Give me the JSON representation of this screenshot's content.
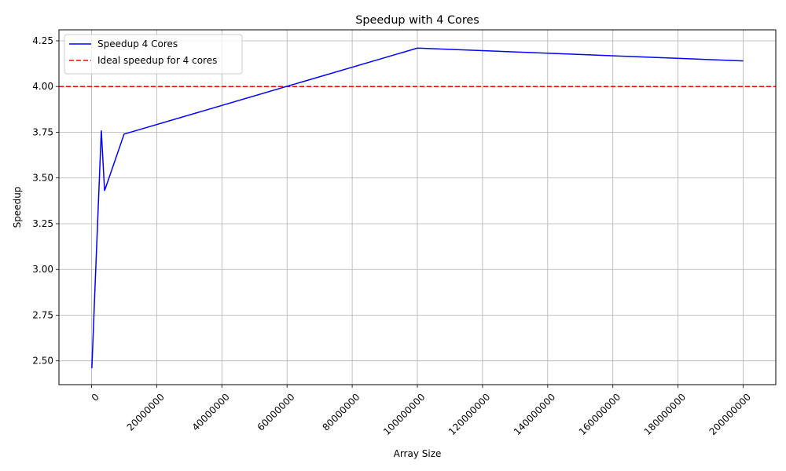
{
  "chart_data": {
    "type": "line",
    "title": "Speedup with 4 Cores",
    "xlabel": "Array Size",
    "ylabel": "Speedup",
    "xlim": [
      -10000000,
      210000000
    ],
    "ylim": [
      2.37,
      4.31
    ],
    "xticks": [
      0,
      20000000,
      40000000,
      60000000,
      80000000,
      100000000,
      120000000,
      140000000,
      160000000,
      180000000,
      200000000
    ],
    "xtick_labels": [
      "0",
      "20000000",
      "40000000",
      "60000000",
      "80000000",
      "100000000",
      "120000000",
      "140000000",
      "160000000",
      "180000000",
      "200000000"
    ],
    "yticks": [
      2.5,
      2.75,
      3.0,
      3.25,
      3.5,
      3.75,
      4.0,
      4.25
    ],
    "ytick_labels": [
      "2.50",
      "2.75",
      "3.00",
      "3.25",
      "3.50",
      "3.75",
      "4.00",
      "4.25"
    ],
    "grid": true,
    "legend_position": "top-left",
    "series": [
      {
        "name": "Speedup 4 Cores",
        "color": "#0000ff",
        "style": "solid",
        "x": [
          100000,
          1000000,
          3000000,
          4000000,
          10000000,
          100000000,
          200000000
        ],
        "y": [
          2.46,
          2.87,
          3.76,
          3.43,
          3.74,
          4.21,
          4.14
        ]
      }
    ],
    "reference_lines": [
      {
        "name": "Ideal speedup for 4 cores",
        "color": "#ff0000",
        "style": "dashed",
        "y": 4.0
      }
    ]
  }
}
